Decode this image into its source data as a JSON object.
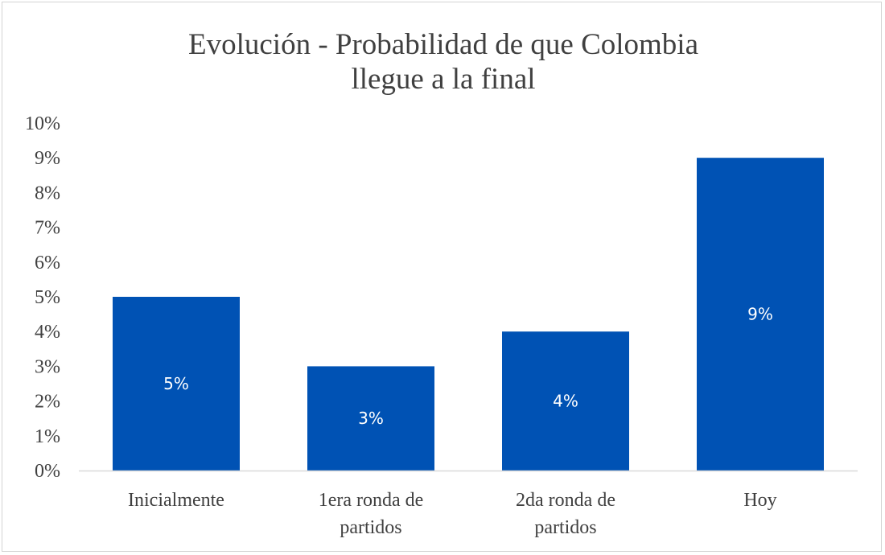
{
  "chart_data": {
    "type": "bar",
    "title_lines": [
      "Evolución - Probabilidad de que Colombia",
      "llegue  a la  final"
    ],
    "categories": [
      [
        "Inicialmente"
      ],
      [
        "1era ronda de",
        "partidos"
      ],
      [
        "2da ronda de",
        "partidos"
      ],
      [
        "Hoy"
      ]
    ],
    "values": [
      5,
      3,
      4,
      9
    ],
    "data_labels": [
      "5%",
      "3%",
      "4%",
      "9%"
    ],
    "y_ticks": [
      "0%",
      "1%",
      "2%",
      "3%",
      "4%",
      "5%",
      "6%",
      "7%",
      "8%",
      "9%",
      "10%"
    ],
    "ylim": [
      0,
      10
    ],
    "xlabel": "",
    "ylabel": "",
    "grid": false,
    "legend": "none",
    "bar_color": "#0052b4",
    "label_color": "#ffffff",
    "axis_color": "#d9d9d9"
  }
}
